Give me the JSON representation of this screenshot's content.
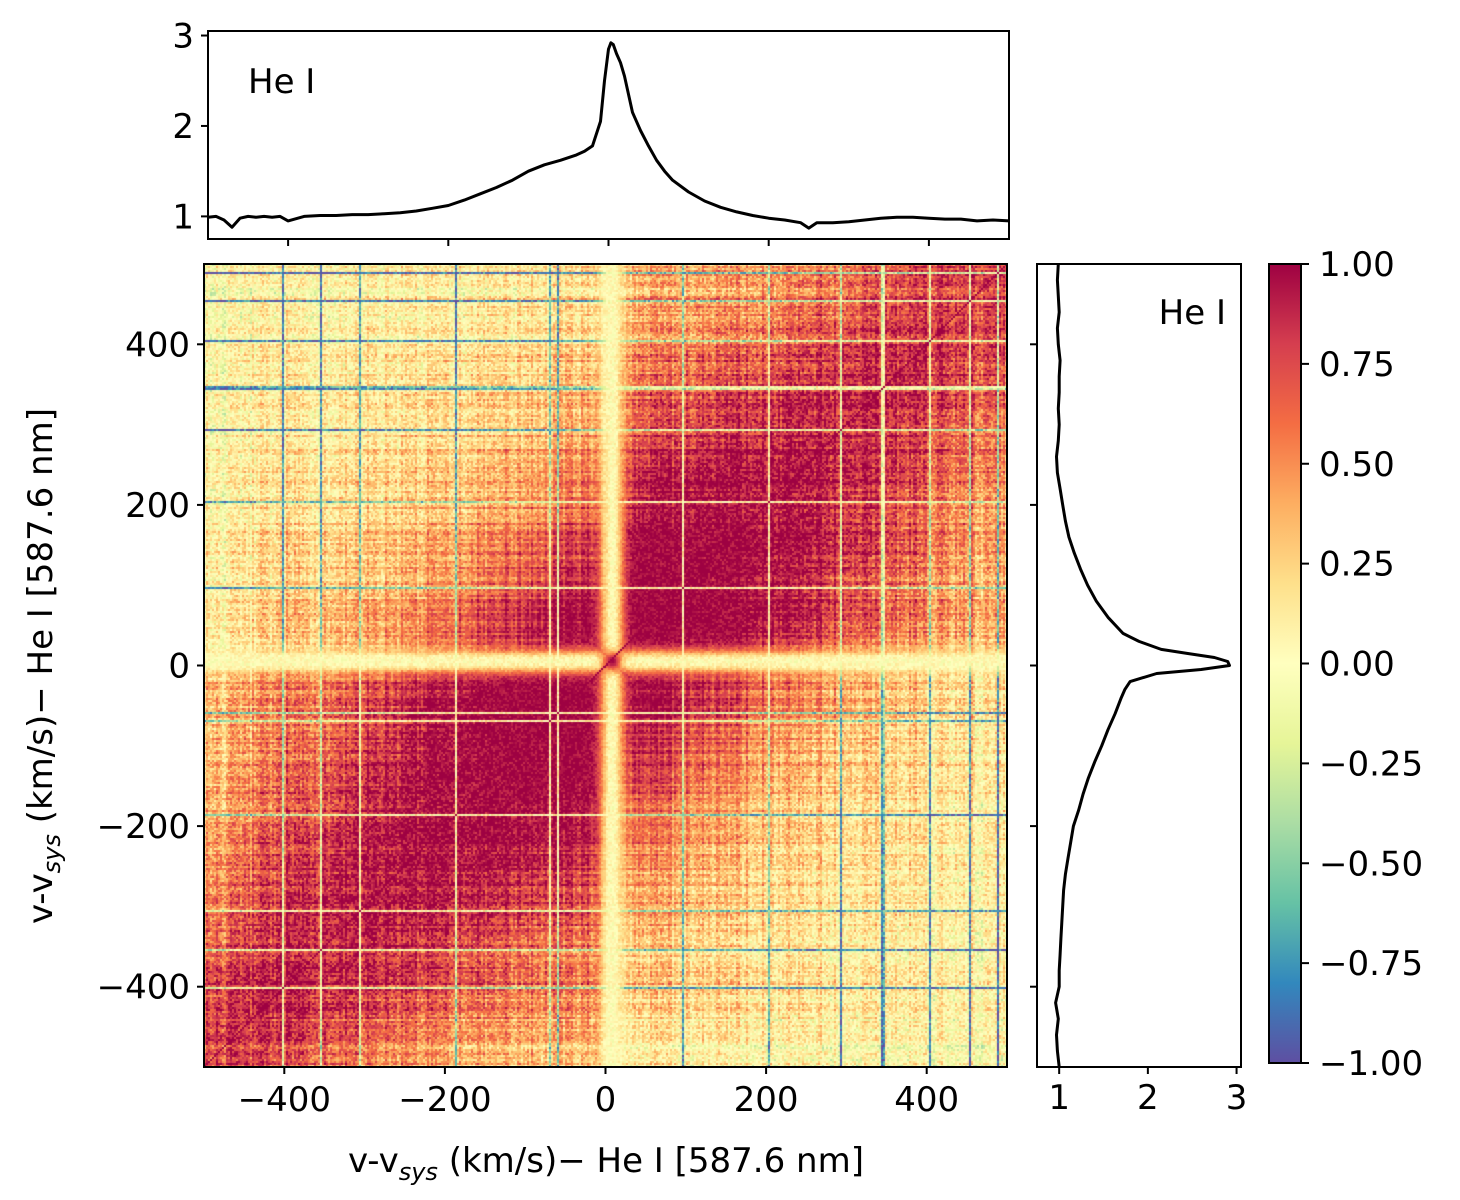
{
  "chart_data": [
    {
      "id": "top",
      "type": "line",
      "annotation": "He I",
      "xlim": [
        -500,
        500
      ],
      "ylim": [
        0.75,
        3.05
      ],
      "yticks": [
        1,
        2,
        3
      ],
      "ytick_labels": [
        "1",
        "2",
        "3"
      ],
      "xticks": [
        -400,
        -200,
        0,
        200,
        400
      ],
      "x": [
        -500,
        -490,
        -480,
        -470,
        -460,
        -450,
        -440,
        -430,
        -420,
        -410,
        -400,
        -380,
        -360,
        -340,
        -320,
        -300,
        -280,
        -260,
        -240,
        -220,
        -200,
        -180,
        -160,
        -140,
        -120,
        -100,
        -80,
        -60,
        -40,
        -30,
        -20,
        -10,
        -5,
        0,
        3,
        6,
        10,
        15,
        20,
        25,
        30,
        40,
        50,
        60,
        70,
        80,
        100,
        120,
        140,
        160,
        180,
        200,
        220,
        240,
        250,
        260,
        280,
        300,
        320,
        340,
        360,
        380,
        400,
        420,
        440,
        460,
        480,
        500
      ],
      "y": [
        0.99,
        1.0,
        0.96,
        0.88,
        0.98,
        1.0,
        0.99,
        1.0,
        0.99,
        1.0,
        0.95,
        1.0,
        1.01,
        1.01,
        1.02,
        1.02,
        1.03,
        1.04,
        1.06,
        1.09,
        1.12,
        1.18,
        1.25,
        1.32,
        1.4,
        1.5,
        1.57,
        1.62,
        1.68,
        1.72,
        1.78,
        2.05,
        2.5,
        2.85,
        2.92,
        2.9,
        2.8,
        2.7,
        2.55,
        2.35,
        2.15,
        1.95,
        1.78,
        1.62,
        1.5,
        1.4,
        1.27,
        1.17,
        1.1,
        1.05,
        1.01,
        0.98,
        0.96,
        0.93,
        0.87,
        0.93,
        0.93,
        0.94,
        0.96,
        0.98,
        0.99,
        0.99,
        0.98,
        0.97,
        0.97,
        0.95,
        0.96,
        0.95
      ]
    },
    {
      "id": "right",
      "type": "line",
      "annotation": "He I",
      "orientation": "vertical",
      "xlim": [
        0.75,
        3.05
      ],
      "ylim": [
        -500,
        500
      ],
      "xticks": [
        1,
        2,
        3
      ],
      "xtick_labels": [
        "1",
        "2",
        "3"
      ],
      "yticks": [
        -400,
        -200,
        0,
        200,
        400
      ],
      "v": [
        -500,
        -480,
        -460,
        -440,
        -420,
        -400,
        -380,
        -360,
        -340,
        -320,
        -300,
        -280,
        -260,
        -240,
        -220,
        -200,
        -180,
        -160,
        -140,
        -120,
        -100,
        -80,
        -60,
        -40,
        -30,
        -20,
        -10,
        -5,
        0,
        5,
        10,
        15,
        20,
        30,
        40,
        60,
        80,
        100,
        120,
        140,
        160,
        180,
        200,
        220,
        240,
        260,
        280,
        300,
        320,
        340,
        360,
        380,
        400,
        420,
        440,
        460,
        480,
        500
      ],
      "flux": [
        1.0,
        0.98,
        0.97,
        0.99,
        0.96,
        1.0,
        1.0,
        1.01,
        1.02,
        1.03,
        1.04,
        1.05,
        1.07,
        1.1,
        1.13,
        1.16,
        1.22,
        1.27,
        1.33,
        1.4,
        1.48,
        1.55,
        1.63,
        1.7,
        1.74,
        1.8,
        2.1,
        2.6,
        2.92,
        2.9,
        2.75,
        2.45,
        2.15,
        1.9,
        1.72,
        1.55,
        1.42,
        1.32,
        1.24,
        1.17,
        1.11,
        1.07,
        1.04,
        1.01,
        0.98,
        0.97,
        0.99,
        1.0,
        0.99,
        1.0,
        1.0,
        1.01,
        0.99,
        0.98,
        1.0,
        0.99,
        0.98,
        0.99
      ]
    },
    {
      "id": "main",
      "type": "heatmap",
      "title": "",
      "xlabel_prefix": "v-v",
      "xlabel_sub": "sys",
      "xlabel_suffix": " (km/s)− He I [587.6 nm]",
      "ylabel_prefix": "v-v",
      "ylabel_sub": "sys",
      "ylabel_suffix": " (km/s)− He I [587.6 nm]",
      "xlim": [
        -500,
        500
      ],
      "ylim": [
        -500,
        500
      ],
      "xticks": [
        -400,
        -200,
        0,
        200,
        400
      ],
      "xtick_labels": [
        "−400",
        "−200",
        "0",
        "200",
        "400"
      ],
      "yticks": [
        -400,
        -200,
        0,
        200,
        400
      ],
      "ytick_labels": [
        "−400",
        "−200",
        "0",
        "200",
        "400"
      ],
      "colormap": "Spectral_r",
      "vmin": -1.0,
      "vmax": 1.0,
      "description_values": {
        "diagonal": 1.0,
        "central_cross_value": 0.0,
        "core_correlation": 0.95,
        "wing_correlation": 0.55
      }
    },
    {
      "id": "colorbar",
      "type": "colorbar",
      "ticks": [
        1.0,
        0.75,
        0.5,
        0.25,
        0.0,
        -0.25,
        -0.5,
        -0.75,
        -1.0
      ],
      "tick_labels": [
        "1.00",
        "0.75",
        "0.50",
        "0.25",
        "0.00",
        "−0.25",
        "−0.50",
        "−0.75",
        "−1.00"
      ],
      "stops": [
        "#5e4fa2",
        "#3288bd",
        "#66c2a5",
        "#abdda4",
        "#e6f598",
        "#ffffbf",
        "#fee08b",
        "#fdae61",
        "#f46d43",
        "#d53e4f",
        "#9e0142"
      ]
    }
  ]
}
